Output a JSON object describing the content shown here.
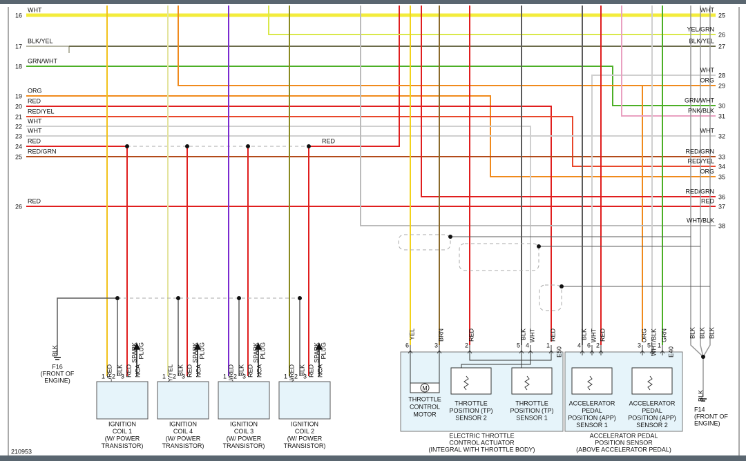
{
  "figure_id": "210953",
  "left_wires": [
    {
      "number": "16",
      "color_code": "WHT"
    },
    {
      "number": "17",
      "color_code": "BLK/YEL"
    },
    {
      "number": "18",
      "color_code": "GRN/WHT"
    },
    {
      "number": "19",
      "color_code": "ORG"
    },
    {
      "number": "20",
      "color_code": "RED"
    },
    {
      "number": "21",
      "color_code": "RED/YEL"
    },
    {
      "number": "22",
      "color_code": "WHT"
    },
    {
      "number": "23",
      "color_code": "WHT"
    },
    {
      "number": "24",
      "color_code": "RED"
    },
    {
      "number": "25",
      "color_code": "RED/GRN"
    },
    {
      "number": "26",
      "color_code": "RED"
    }
  ],
  "right_wires": [
    {
      "number": "25",
      "color_code": "WHT"
    },
    {
      "number": "26",
      "color_code": "YEL/GRN"
    },
    {
      "number": "27",
      "color_code": "BLK/YEL"
    },
    {
      "number": "28",
      "color_code": "WHT"
    },
    {
      "number": "29",
      "color_code": "ORG"
    },
    {
      "number": "30",
      "color_code": "GRN/WHT"
    },
    {
      "number": "31",
      "color_code": "PNK/BLK"
    },
    {
      "number": "32",
      "color_code": "WHT"
    },
    {
      "number": "33",
      "color_code": "RED/GRN"
    },
    {
      "number": "34",
      "color_code": "RED/YEL"
    },
    {
      "number": "35",
      "color_code": "ORG"
    },
    {
      "number": "36",
      "color_code": "RED/GRN"
    },
    {
      "number": "37",
      "color_code": "RED"
    },
    {
      "number": "38",
      "color_code": "WHT/BLK"
    }
  ],
  "splice_label": "RED",
  "ignition_coils": [
    {
      "wires": [
        "YEL/RED",
        "BLK",
        "RED"
      ],
      "pins": [
        "1",
        "2",
        "3"
      ],
      "output_pin": "NCA",
      "output": [
        "SPARK",
        "PLUG"
      ],
      "name": [
        "IGNITION",
        "COIL 1",
        "(W/ POWER",
        "TRANSISTOR)"
      ]
    },
    {
      "wires": [
        "GRY/YEL",
        "BLK",
        "RED"
      ],
      "pins": [
        "1",
        "2",
        "3"
      ],
      "output_pin": "NCA",
      "output": [
        "SPARK",
        "PLUG"
      ],
      "name": [
        "IGNITION",
        "COIL 4",
        "(W/ POWER",
        "TRANSISTOR)"
      ]
    },
    {
      "wires": [
        "BLU/RED",
        "BLK",
        "RED"
      ],
      "pins": [
        "1",
        "2",
        "3"
      ],
      "output_pin": "NCA",
      "output": [
        "SPARK",
        "PLUG"
      ],
      "name": [
        "IGNITION",
        "COIL 3",
        "(W/ POWER",
        "TRANSISTOR)"
      ]
    },
    {
      "wires": [
        "GRN/RED",
        "BLK",
        "RED"
      ],
      "pins": [
        "1",
        "2",
        "3"
      ],
      "output_pin": "NCA",
      "output": [
        "SPARK",
        "PLUG"
      ],
      "name": [
        "IGNITION",
        "COIL 2",
        "(W/ POWER",
        "TRANSISTOR)"
      ]
    }
  ],
  "ground_f16": {
    "wire": "BLK",
    "name": [
      "F16",
      "(FRONT OF",
      "ENGINE)"
    ]
  },
  "ground_f14": {
    "wires": [
      "BLK",
      "BLK",
      "BLK"
    ],
    "wire": "BLK",
    "name": [
      "F14",
      "(FRONT OF",
      "ENGINE)"
    ]
  },
  "throttle_actuator": {
    "wires": [
      "YEL",
      "BRN",
      "RED",
      "BLK",
      "WHT",
      "RED"
    ],
    "pins": [
      "6",
      "3",
      "2",
      "5",
      "4",
      "1"
    ],
    "connector": "E50",
    "motor_symbol": "M",
    "parts": [
      [
        "THROTTLE",
        "CONTROL",
        "MOTOR"
      ],
      [
        "THROTTLE",
        "POSITION (TP)",
        "SENSOR 2"
      ],
      [
        "THROTTLE",
        "POSITION (TP)",
        "SENSOR 1"
      ]
    ],
    "name": [
      "ELECTRIC THROTTLE",
      "CONTROL ACTUATOR",
      "(INTEGRAL WITH THROTTLE BODY)"
    ]
  },
  "app_sensor": {
    "wires": [
      "BLK",
      "WHT",
      "RED",
      "ORG",
      "WHT/BLK",
      "GRN"
    ],
    "pins": [
      "4",
      "6",
      "2",
      "3",
      "5",
      "1"
    ],
    "connector": "E40",
    "parts": [
      [
        "ACCELERATOR",
        "PEDAL",
        "POSITION (APP)",
        "SENSOR 1"
      ],
      [
        "ACCELERATOR",
        "PEDAL",
        "POSITION (APP)",
        "SENSOR 2"
      ]
    ],
    "name": [
      "ACCELERATOR PEDAL",
      "POSITION SENSOR",
      "(ABOVE ACCELERATOR PEDAL)"
    ]
  }
}
